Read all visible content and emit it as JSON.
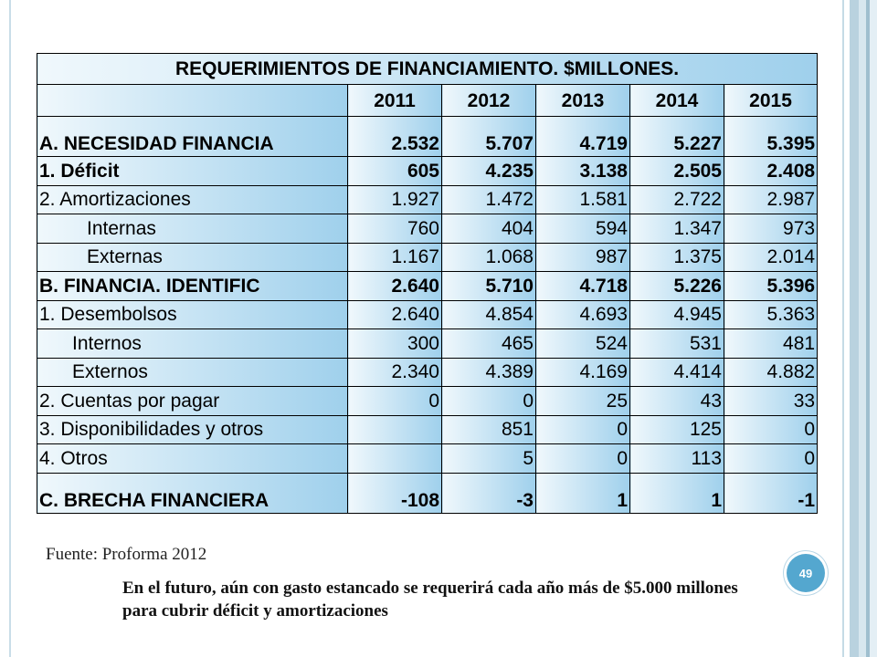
{
  "table": {
    "title": "REQUERIMIENTOS DE FINANCIAMIENTO. $MILLONES.",
    "years": [
      "2011",
      "2012",
      "2013",
      "2014",
      "2015"
    ],
    "rows": [
      {
        "label": "A. NECESIDAD FINANCIA",
        "values": [
          "2.532",
          "5.707",
          "4.719",
          "5.227",
          "5.395"
        ]
      },
      {
        "label": "1. Déficit",
        "values": [
          "605",
          "4.235",
          "3.138",
          "2.505",
          "2.408"
        ]
      },
      {
        "label": "2. Amortizaciones",
        "values": [
          "1.927",
          "1.472",
          "1.581",
          "2.722",
          "2.987"
        ]
      },
      {
        "label": "Internas",
        "values": [
          "760",
          "404",
          "594",
          "1.347",
          "973"
        ]
      },
      {
        "label": "Externas",
        "values": [
          "1.167",
          "1.068",
          "987",
          "1.375",
          "2.014"
        ]
      },
      {
        "label": "B. FINANCIA. IDENTIFIC",
        "values": [
          "2.640",
          "5.710",
          "4.718",
          "5.226",
          "5.396"
        ]
      },
      {
        "label": "1. Desembolsos",
        "values": [
          "2.640",
          "4.854",
          "4.693",
          "4.945",
          "5.363"
        ]
      },
      {
        "label": "Internos",
        "values": [
          "300",
          "465",
          "524",
          "531",
          "481"
        ]
      },
      {
        "label": "Externos",
        "values": [
          "2.340",
          "4.389",
          "4.169",
          "4.414",
          "4.882"
        ]
      },
      {
        "label": "2. Cuentas por pagar",
        "values": [
          "0",
          "0",
          "25",
          "43",
          "33"
        ]
      },
      {
        "label": "3. Disponibilidades y otros",
        "values": [
          "",
          "851",
          "0",
          "125",
          "0"
        ]
      },
      {
        "label": "4. Otros",
        "values": [
          "",
          "5",
          "0",
          "113",
          "0"
        ]
      },
      {
        "label": "C. BRECHA FINANCIERA",
        "values": [
          "-108",
          "-3",
          "1",
          "1",
          "-1"
        ]
      }
    ]
  },
  "source": "Fuente: Proforma 2012",
  "note": "En el futuro, aún con gasto estancado se requerirá cada año más de $5.000 millones para cubrir déficit y amortizaciones",
  "page_number": "49",
  "colors": {
    "cell_light": "#f0f8fc",
    "cell_dark": "#9fd0ec",
    "badge": "#54a7cf"
  }
}
